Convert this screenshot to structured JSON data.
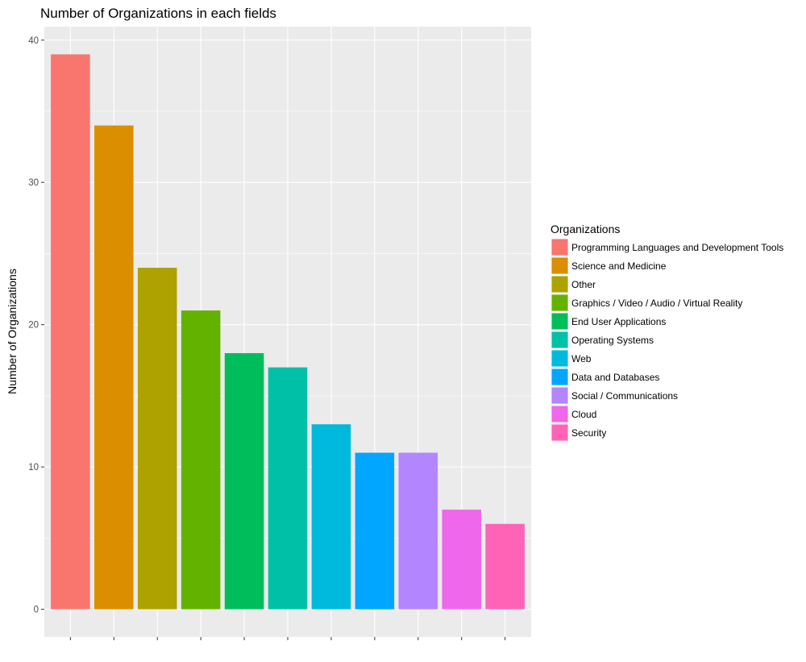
{
  "chart_data": {
    "type": "bar",
    "title": "Number of Organizations in each fields",
    "xlabel": "",
    "ylabel": "Number of Organizations",
    "ylim": [
      -1.95,
      40.95
    ],
    "yticks": [
      0,
      10,
      20,
      30,
      40
    ],
    "grid": true,
    "legend": {
      "title": "Organizations",
      "position": "right"
    },
    "categories": [
      "Programming Languages and Development Tools",
      "Science and Medicine",
      "Other",
      "Graphics / Video / Audio / Virtual Reality",
      "End User Applications",
      "Operating Systems",
      "Web",
      "Data and Databases",
      "Social / Communications",
      "Cloud",
      "Security"
    ],
    "values": [
      39,
      34,
      24,
      21,
      18,
      17,
      13,
      11,
      11,
      7,
      6
    ],
    "colors": [
      "#F8766D",
      "#DB8E00",
      "#AEA200",
      "#64B200",
      "#00BD5C",
      "#00C1A7",
      "#00BADE",
      "#00A6FF",
      "#B385FF",
      "#EF67EB",
      "#FF63B6"
    ]
  }
}
